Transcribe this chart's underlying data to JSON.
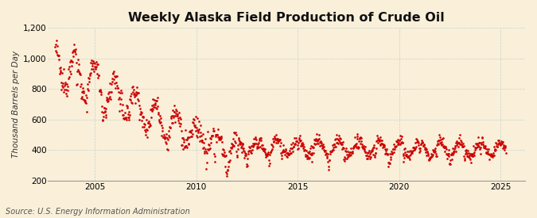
{
  "title": "Weekly Alaska Field Production of Crude Oil",
  "ylabel": "Thousand Barrels per Day",
  "source": "Source: U.S. Energy Information Administration",
  "background_color": "#faefd9",
  "line_color": "#cc0000",
  "ylim": [
    200,
    1200
  ],
  "yticks": [
    200,
    400,
    600,
    800,
    1000,
    1200
  ],
  "xlim_start": 2002.7,
  "xlim_end": 2026.2,
  "xticks": [
    2005,
    2010,
    2015,
    2020,
    2025
  ],
  "title_fontsize": 11.5,
  "ylabel_fontsize": 7.5,
  "source_fontsize": 7.0,
  "marker_size": 1.8
}
